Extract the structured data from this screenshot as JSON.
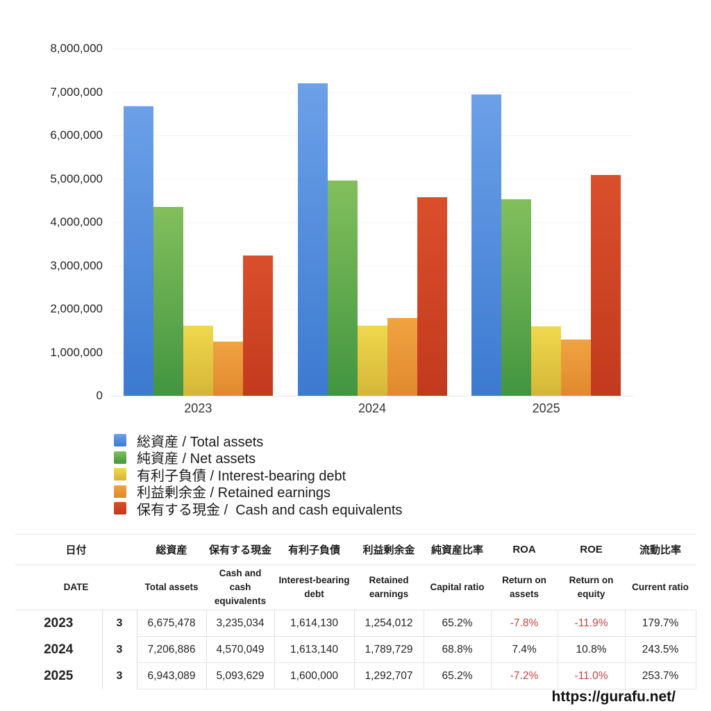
{
  "chart_data": {
    "type": "bar",
    "title": "",
    "xlabel": "",
    "ylabel": "",
    "categories": [
      "2023",
      "2024",
      "2025"
    ],
    "series": [
      {
        "name": "総資産 / Total assets",
        "values": [
          6675478,
          7206886,
          6943089
        ],
        "color_top": "#6ca0e8",
        "color_bottom": "#3c7ad0"
      },
      {
        "name": "純資産 / Net assets",
        "values": [
          4350000,
          4960000,
          4530000
        ],
        "color_top": "#82bf5c",
        "color_bottom": "#429540"
      },
      {
        "name": "有利子負債 / Interest-bearing debt",
        "values": [
          1614130,
          1613140,
          1600000
        ],
        "color_top": "#f0d84d",
        "color_bottom": "#d4b637"
      },
      {
        "name": "利益剰余金 / Retained earnings",
        "values": [
          1254012,
          1789729,
          1292707
        ],
        "color_top": "#f0a340",
        "color_bottom": "#e0892e"
      },
      {
        "name": "保有する現金 /  Cash and cash equivalents",
        "values": [
          3235034,
          4570049,
          5093629
        ],
        "color_top": "#da4f2b",
        "color_bottom": "#c23a1e"
      }
    ],
    "ylim": [
      0,
      8000000
    ],
    "ytick_step": 1000000,
    "grid": true,
    "legend_position": "bottom-left"
  },
  "table": {
    "header_jp": [
      "日付",
      "総資産",
      "保有する現金",
      "有利子負債",
      "利益剰余金",
      "純資産比率",
      "ROA",
      "ROE",
      "流動比率"
    ],
    "header_en": [
      "DATE",
      "Total assets",
      "Cash and cash equivalents",
      "Interest-bearing debt",
      "Retained earnings",
      "Capital ratio",
      "Return on assets",
      "Return on equity",
      "Current ratio"
    ],
    "rows": [
      {
        "year": "2023",
        "month": "3",
        "cells": [
          "6,675,478",
          "3,235,034",
          "1,614,130",
          "1,254,012",
          "65.2%",
          "-7.8%",
          "-11.9%",
          "179.7%"
        ]
      },
      {
        "year": "2024",
        "month": "3",
        "cells": [
          "7,206,886",
          "4,570,049",
          "1,613,140",
          "1,789,729",
          "68.8%",
          "7.4%",
          "10.8%",
          "243.5%"
        ]
      },
      {
        "year": "2025",
        "month": "3",
        "cells": [
          "6,943,089",
          "5,093,629",
          "1,600,000",
          "1,292,707",
          "65.2%",
          "-7.2%",
          "-11.0%",
          "253.7%"
        ]
      }
    ],
    "negative_color": "#c24540"
  },
  "footer": {
    "url": "https://gurafu.net/"
  }
}
